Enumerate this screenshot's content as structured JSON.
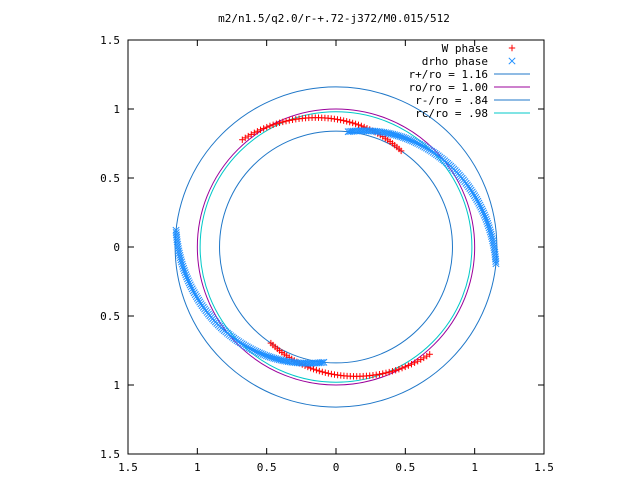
{
  "chart_data": {
    "type": "scatter",
    "title": "m2/n1.5/q2.0/r-+.72-j372/M0.015/512",
    "xlabel": "",
    "ylabel": "",
    "xlim": [
      -1.5,
      1.5
    ],
    "ylim": [
      -1.5,
      1.5
    ],
    "x_tick_values": [
      -1.5,
      -1,
      -0.5,
      0,
      0.5,
      1,
      1.5
    ],
    "x_tick_labels": [
      "1.5",
      "1",
      "0.5",
      "0",
      "0.5",
      "1",
      "1.5"
    ],
    "y_tick_values": [
      1.5,
      1,
      0.5,
      0,
      -0.5,
      -1,
      -1.5
    ],
    "y_tick_labels": [
      "1.5",
      "1",
      "0.5",
      "0",
      "0.5",
      "1",
      "1.5"
    ],
    "grid": false,
    "legend_position": "top-right",
    "circles": [
      {
        "name": "r+/ro = 1.16",
        "radius": 1.16,
        "color": "#1f77c8"
      },
      {
        "name": "ro/ro = 1.00",
        "radius": 1.0,
        "color": "#9b009b"
      },
      {
        "name": "r-/ro = .84",
        "radius": 0.84,
        "color": "#1f77c8"
      },
      {
        "name": "rc/ro = .98",
        "radius": 0.98,
        "color": "#00c8c8"
      }
    ],
    "point_series": [
      {
        "name": "W phase",
        "marker": "+",
        "color": "#ff0000",
        "arcs": [
          {
            "radius_start": 1.03,
            "radius_end": 0.84,
            "angle_start_deg": 131,
            "angle_end_deg": 56,
            "count": 55
          },
          {
            "radius_start": 1.03,
            "radius_end": 0.84,
            "angle_start_deg": -49,
            "angle_end_deg": -124,
            "count": 55
          }
        ]
      },
      {
        "name": "drho phase",
        "marker": "x",
        "color": "#1f8fff",
        "arcs": [
          {
            "radius_start": 0.84,
            "radius_end": 1.16,
            "angle_start_deg": 84,
            "angle_end_deg": -6,
            "count": 110
          },
          {
            "radius_start": 0.84,
            "radius_end": 1.16,
            "angle_start_deg": -96,
            "angle_end_deg": -186,
            "count": 110
          }
        ]
      }
    ]
  }
}
